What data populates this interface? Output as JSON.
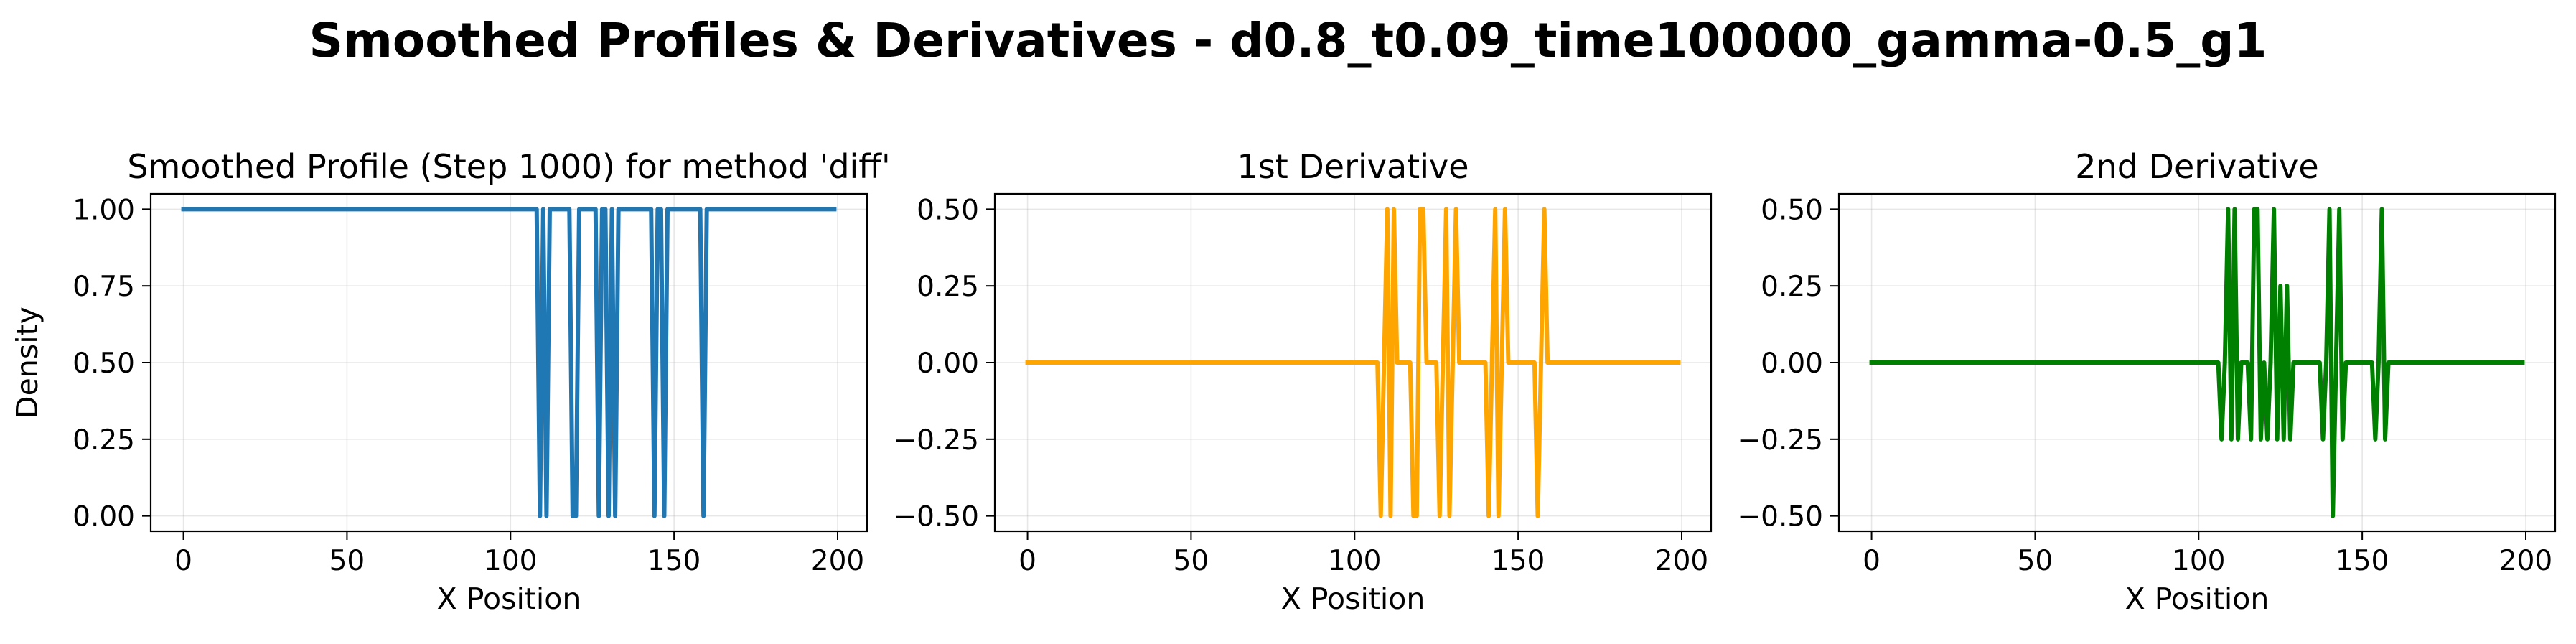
{
  "suptitle": "Smoothed Profiles & Derivatives - d0.8_t0.09_time100000_gamma-0.5_g1",
  "x_grid": [
    0,
    1,
    2,
    3,
    4,
    5,
    6,
    7,
    8,
    9,
    10,
    11,
    12,
    13,
    14,
    15,
    16,
    17,
    18,
    19,
    20,
    21,
    22,
    23,
    24,
    25,
    26,
    27,
    28,
    29,
    30,
    31,
    32,
    33,
    34,
    35,
    36,
    37,
    38,
    39,
    40,
    41,
    42,
    43,
    44,
    45,
    46,
    47,
    48,
    49,
    50,
    51,
    52,
    53,
    54,
    55,
    56,
    57,
    58,
    59,
    60,
    61,
    62,
    63,
    64,
    65,
    66,
    67,
    68,
    69,
    70,
    71,
    72,
    73,
    74,
    75,
    76,
    77,
    78,
    79,
    80,
    81,
    82,
    83,
    84,
    85,
    86,
    87,
    88,
    89,
    90,
    91,
    92,
    93,
    94,
    95,
    96,
    97,
    98,
    99,
    100,
    101,
    102,
    103,
    104,
    105,
    106,
    107,
    108,
    109,
    110,
    111,
    112,
    113,
    114,
    115,
    116,
    117,
    118,
    119,
    120,
    121,
    122,
    123,
    124,
    125,
    126,
    127,
    128,
    129,
    130,
    131,
    132,
    133,
    134,
    135,
    136,
    137,
    138,
    139,
    140,
    141,
    142,
    143,
    144,
    145,
    146,
    147,
    148,
    149,
    150,
    151,
    152,
    153,
    154,
    155,
    156,
    157,
    158,
    159,
    160,
    161,
    162,
    163,
    164,
    165,
    166,
    167,
    168,
    169,
    170,
    171,
    172,
    173,
    174,
    175,
    176,
    177,
    178,
    179,
    180,
    181,
    182,
    183,
    184,
    185,
    186,
    187,
    188,
    189,
    190,
    191,
    192,
    193,
    194,
    195,
    196,
    197,
    198,
    199
  ],
  "chart_data": [
    {
      "type": "line",
      "title": "Smoothed Profile (Step 1000) for method 'diff'",
      "xlabel": "X Position",
      "ylabel": "Density",
      "xlim": [
        -10,
        209
      ],
      "ylim": [
        -0.05,
        1.05
      ],
      "xticks": [
        0,
        50,
        100,
        150,
        200
      ],
      "xtick_labels": [
        "0",
        "50",
        "100",
        "150",
        "200"
      ],
      "yticks": [
        0,
        0.25,
        0.5,
        0.75,
        1.0
      ],
      "ytick_labels": [
        "0.00",
        "0.25",
        "0.50",
        "0.75",
        "1.00"
      ],
      "grid": true,
      "series": [
        {
          "color": "#1f77b4",
          "values": [
            1,
            1,
            1,
            1,
            1,
            1,
            1,
            1,
            1,
            1,
            1,
            1,
            1,
            1,
            1,
            1,
            1,
            1,
            1,
            1,
            1,
            1,
            1,
            1,
            1,
            1,
            1,
            1,
            1,
            1,
            1,
            1,
            1,
            1,
            1,
            1,
            1,
            1,
            1,
            1,
            1,
            1,
            1,
            1,
            1,
            1,
            1,
            1,
            1,
            1,
            1,
            1,
            1,
            1,
            1,
            1,
            1,
            1,
            1,
            1,
            1,
            1,
            1,
            1,
            1,
            1,
            1,
            1,
            1,
            1,
            1,
            1,
            1,
            1,
            1,
            1,
            1,
            1,
            1,
            1,
            1,
            1,
            1,
            1,
            1,
            1,
            1,
            1,
            1,
            1,
            1,
            1,
            1,
            1,
            1,
            1,
            1,
            1,
            1,
            1,
            1,
            1,
            1,
            1,
            1,
            1,
            1,
            1,
            1,
            0,
            1,
            0,
            1,
            1,
            1,
            1,
            1,
            1,
            1,
            0,
            0,
            1,
            1,
            1,
            1,
            1,
            1,
            0,
            1,
            1,
            0,
            1,
            0,
            1,
            1,
            1,
            1,
            1,
            1,
            1,
            1,
            1,
            1,
            1,
            0,
            1,
            1,
            0,
            1,
            1,
            1,
            1,
            1,
            1,
            1,
            1,
            1,
            1,
            1,
            0,
            1,
            1,
            1,
            1,
            1,
            1,
            1,
            1,
            1,
            1,
            1,
            1,
            1,
            1,
            1,
            1,
            1,
            1,
            1,
            1,
            1,
            1,
            1,
            1,
            1,
            1,
            1,
            1,
            1,
            1,
            1,
            1,
            1,
            1,
            1,
            1,
            1,
            1,
            1,
            1
          ]
        }
      ]
    },
    {
      "type": "line",
      "title": "1st Derivative",
      "xlabel": "X Position",
      "ylabel": "",
      "xlim": [
        -10,
        209
      ],
      "ylim": [
        -0.55,
        0.55
      ],
      "xticks": [
        0,
        50,
        100,
        150,
        200
      ],
      "xtick_labels": [
        "0",
        "50",
        "100",
        "150",
        "200"
      ],
      "yticks": [
        -0.5,
        -0.25,
        0,
        0.25,
        0.5
      ],
      "ytick_labels": [
        "−0.50",
        "−0.25",
        "0.00",
        "0.25",
        "0.50"
      ],
      "grid": true,
      "series": [
        {
          "color": "#ffa500",
          "values": [
            0,
            0,
            0,
            0,
            0,
            0,
            0,
            0,
            0,
            0,
            0,
            0,
            0,
            0,
            0,
            0,
            0,
            0,
            0,
            0,
            0,
            0,
            0,
            0,
            0,
            0,
            0,
            0,
            0,
            0,
            0,
            0,
            0,
            0,
            0,
            0,
            0,
            0,
            0,
            0,
            0,
            0,
            0,
            0,
            0,
            0,
            0,
            0,
            0,
            0,
            0,
            0,
            0,
            0,
            0,
            0,
            0,
            0,
            0,
            0,
            0,
            0,
            0,
            0,
            0,
            0,
            0,
            0,
            0,
            0,
            0,
            0,
            0,
            0,
            0,
            0,
            0,
            0,
            0,
            0,
            0,
            0,
            0,
            0,
            0,
            0,
            0,
            0,
            0,
            0,
            0,
            0,
            0,
            0,
            0,
            0,
            0,
            0,
            0,
            0,
            0,
            0,
            0,
            0,
            0,
            0,
            0,
            0,
            -0.5,
            0,
            0.5,
            -0.5,
            0.5,
            0,
            0,
            0,
            0,
            0,
            -0.5,
            -0.5,
            0.5,
            0.5,
            0,
            0,
            0,
            0,
            -0.5,
            0,
            0.5,
            -0.5,
            0,
            0.5,
            0,
            0,
            0,
            0,
            0,
            0,
            0,
            0,
            0,
            -0.5,
            0,
            0.5,
            -0.5,
            0,
            0.5,
            0,
            0,
            0,
            0,
            0,
            0,
            0,
            0,
            0,
            -0.5,
            0,
            0.5,
            0,
            0,
            0,
            0,
            0,
            0,
            0,
            0,
            0,
            0,
            0,
            0,
            0,
            0,
            0,
            0,
            0,
            0,
            0,
            0,
            0,
            0,
            0,
            0,
            0,
            0,
            0,
            0,
            0,
            0,
            0,
            0,
            0,
            0,
            0,
            0,
            0,
            0,
            0,
            0,
            0,
            0,
            0,
            0,
            0,
            0,
            0
          ]
        }
      ]
    },
    {
      "type": "line",
      "title": "2nd Derivative",
      "xlabel": "X Position",
      "ylabel": "",
      "xlim": [
        -10,
        209
      ],
      "ylim": [
        -0.55,
        0.55
      ],
      "xticks": [
        0,
        50,
        100,
        150,
        200
      ],
      "xtick_labels": [
        "0",
        "50",
        "100",
        "150",
        "200"
      ],
      "yticks": [
        -0.5,
        -0.25,
        0,
        0.25,
        0.5
      ],
      "ytick_labels": [
        "−0.50",
        "−0.25",
        "0.00",
        "0.25",
        "0.50"
      ],
      "grid": true,
      "series": [
        {
          "color": "#008000",
          "values": [
            0,
            0,
            0,
            0,
            0,
            0,
            0,
            0,
            0,
            0,
            0,
            0,
            0,
            0,
            0,
            0,
            0,
            0,
            0,
            0,
            0,
            0,
            0,
            0,
            0,
            0,
            0,
            0,
            0,
            0,
            0,
            0,
            0,
            0,
            0,
            0,
            0,
            0,
            0,
            0,
            0,
            0,
            0,
            0,
            0,
            0,
            0,
            0,
            0,
            0,
            0,
            0,
            0,
            0,
            0,
            0,
            0,
            0,
            0,
            0,
            0,
            0,
            0,
            0,
            0,
            0,
            0,
            0,
            0,
            0,
            0,
            0,
            0,
            0,
            0,
            0,
            0,
            0,
            0,
            0,
            0,
            0,
            0,
            0,
            0,
            0,
            0,
            0,
            0,
            0,
            0,
            0,
            0,
            0,
            0,
            0,
            0,
            0,
            0,
            0,
            0,
            0,
            0,
            0,
            0,
            0,
            0,
            -0.25,
            0,
            0.5,
            -0.25,
            0.5,
            -0.25,
            0,
            0,
            0,
            -0.25,
            0.5,
            0.5,
            -0.25,
            0,
            -0.25,
            0,
            0.5,
            -0.25,
            0.25,
            -0.25,
            0.25,
            -0.25,
            0,
            0,
            0,
            0,
            0,
            0,
            0,
            0,
            0,
            -0.25,
            0,
            0.5,
            -0.5,
            0,
            0.5,
            -0.25,
            0,
            0,
            0,
            0,
            0,
            0,
            0,
            0,
            0,
            -0.25,
            0,
            0.5,
            -0.25,
            0,
            0,
            0,
            0,
            0,
            0,
            0,
            0,
            0,
            0,
            0,
            0,
            0,
            0,
            0,
            0,
            0,
            0,
            0,
            0,
            0,
            0,
            0,
            0,
            0,
            0,
            0,
            0,
            0,
            0,
            0,
            0,
            0,
            0,
            0,
            0,
            0,
            0,
            0,
            0,
            0,
            0,
            0,
            0,
            0,
            0,
            0
          ]
        }
      ]
    }
  ]
}
